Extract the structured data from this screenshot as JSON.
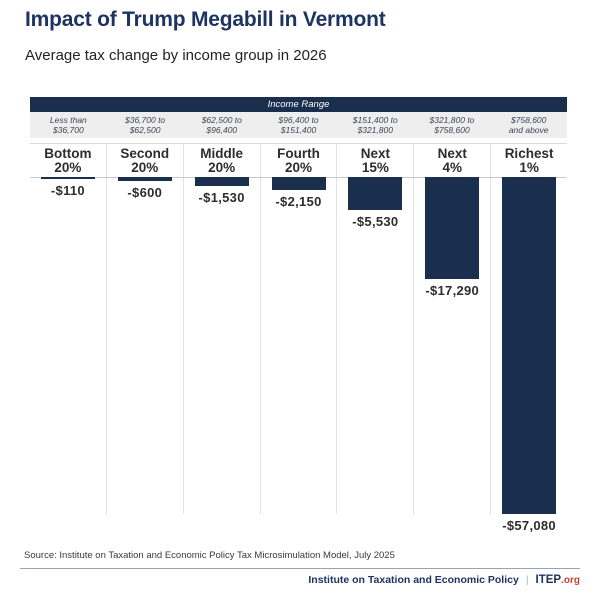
{
  "title": "Impact of Trump Megabill in Vermont",
  "subtitle": "Average tax change by income group in 2026",
  "source": "Source: Institute on Taxation and Economic Policy Tax Microsimulation Model, July 2025",
  "footer": {
    "org": "Institute on Taxation and Economic Policy",
    "separator": "|",
    "brand": "ITEP",
    "brand_suffix": ".org"
  },
  "colors": {
    "navy": "#1a2e4e",
    "title_navy": "#1d3461",
    "accent_red": "#c44536",
    "income_labels_bg": "#eeeeee",
    "gridline": "#e3e3e3"
  },
  "chart_data": {
    "type": "bar",
    "title": "Impact of Trump Megabill in Vermont",
    "subtitle": "Average tax change by income group in 2026",
    "income_range_header": "Income Range",
    "income_ranges": [
      [
        "Less than",
        "$36,700"
      ],
      [
        "$36,700 to",
        "$62,500"
      ],
      [
        "$62,500 to",
        "$96,400"
      ],
      [
        "$96,400 to",
        "$151,400"
      ],
      [
        "$151,400 to",
        "$321,800"
      ],
      [
        "$321,800 to",
        "$758,600"
      ],
      [
        "$758,600",
        "and above"
      ]
    ],
    "categories": [
      "Bottom 20%",
      "Second 20%",
      "Middle 20%",
      "Fourth 20%",
      "Next 15%",
      "Next 4%",
      "Richest 1%"
    ],
    "category_lines": [
      [
        "Bottom",
        "20%"
      ],
      [
        "Second",
        "20%"
      ],
      [
        "Middle",
        "20%"
      ],
      [
        "Fourth",
        "20%"
      ],
      [
        "Next",
        "15%"
      ],
      [
        "Next",
        "4%"
      ],
      [
        "Richest",
        "1%"
      ]
    ],
    "values": [
      -110,
      -600,
      -1530,
      -2150,
      -5530,
      -17290,
      -57080
    ],
    "value_labels": [
      "-$110",
      "-$600",
      "-$1,530",
      "-$2,150",
      "-$5,530",
      "-$17,290",
      "-$57,080"
    ],
    "ylim": [
      -57080,
      0
    ],
    "bar_color": "#1a2e4e",
    "grid": "vertical-column-separators",
    "legend": "none",
    "orientation": "vertical-negative"
  }
}
